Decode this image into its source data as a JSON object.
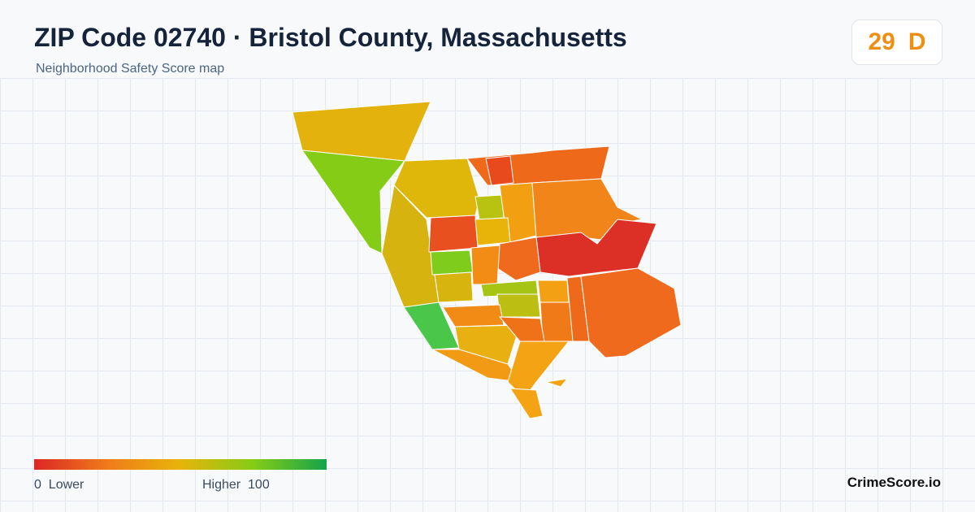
{
  "header": {
    "title": "ZIP Code 02740 · Bristol County, Massachusetts",
    "subtitle": "Neighborhood Safety Score map"
  },
  "score": {
    "value": 29,
    "grade": "D"
  },
  "legend": {
    "min": 0,
    "min_label": "Lower",
    "max_label": "Higher",
    "max": 100
  },
  "brand": "CrimeScore.io"
}
